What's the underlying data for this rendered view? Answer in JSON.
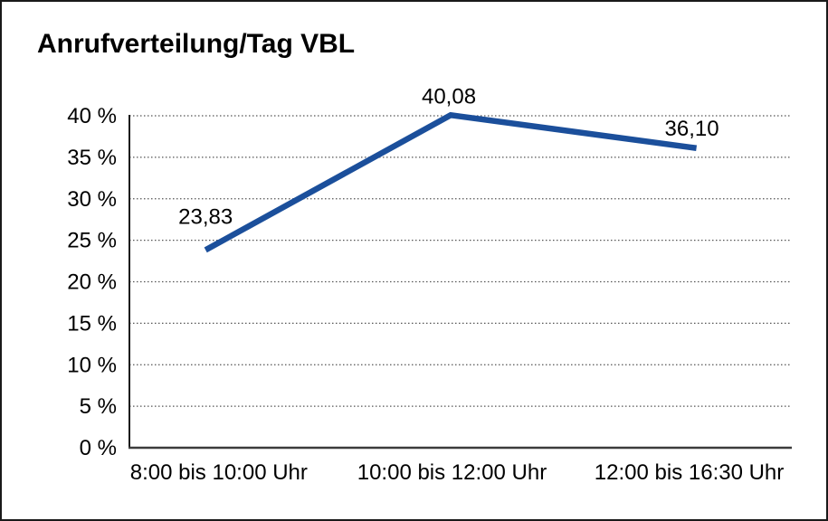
{
  "chart_data": {
    "type": "line",
    "title": "Anrufverteilung/Tag VBL",
    "categories": [
      "8:00 bis 10:00 Uhr",
      "10:00 bis 12:00 Uhr",
      "12:00 bis 16:30 Uhr"
    ],
    "series": [
      {
        "name": "Anrufverteilung/Tag VBL",
        "values": [
          23.83,
          40.08,
          36.1
        ],
        "point_labels": [
          "23,83",
          "40,08",
          "36,10"
        ],
        "color": "#1b4f9b"
      }
    ],
    "xlabel": "",
    "ylabel": "",
    "ylim": [
      0,
      40
    ],
    "ytick_step": 5,
    "ytick_labels": [
      "0 %",
      "5 %",
      "10 %",
      "15 %",
      "20 %",
      "25 %",
      "30 %",
      "35 %",
      "40 %"
    ],
    "grid": "horizontal-dotted",
    "legend": "none",
    "colors": {
      "line": "#1b4f9b",
      "grid": "#555555",
      "axis": "#1a1a1a",
      "x_axis": "#3c3c3c",
      "text": "#000000",
      "background": "#ffffff",
      "border": "#1a1a1a"
    }
  }
}
